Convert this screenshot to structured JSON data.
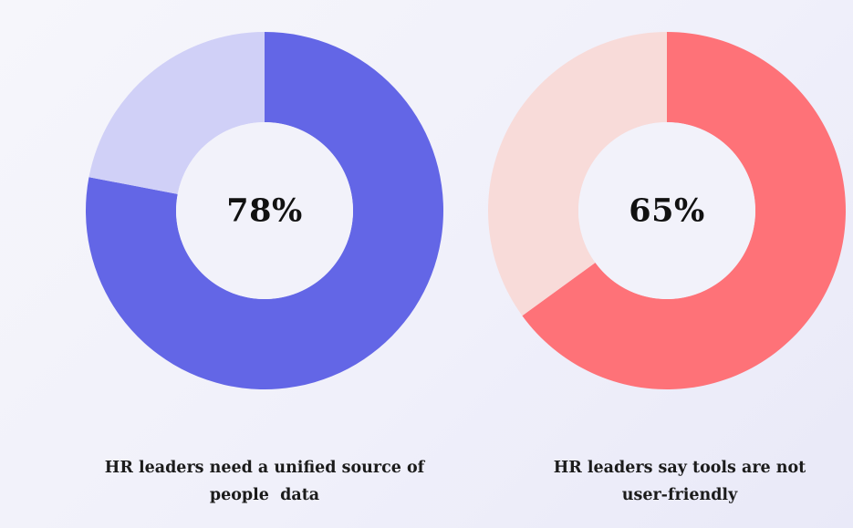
{
  "chart_data": [
    {
      "type": "donut",
      "value": 78,
      "max": 100,
      "center_label": "78%",
      "caption_lines": [
        "HR leaders need a unified source of",
        "people  data"
      ],
      "colors": {
        "primary": "#6366e6",
        "remainder": "#d0d0f7"
      }
    },
    {
      "type": "donut",
      "value": 65,
      "max": 100,
      "center_label": "65%",
      "caption_lines": [
        "HR leaders say tools are not",
        "user-friendly"
      ],
      "colors": {
        "primary": "#fe7278",
        "remainder": "#f8dbd9"
      }
    }
  ]
}
